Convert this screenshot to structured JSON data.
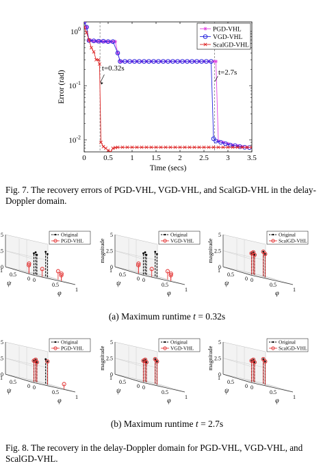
{
  "fig7": {
    "caption": "Fig. 7.  The recovery errors of PGD-VHL, VGD-VHL, and ScalGD-VHL in the delay-Doppler domain.",
    "chart_data": {
      "type": "line",
      "xlabel": "Time (secs)",
      "ylabel": "Error (rad)",
      "xlim": [
        0,
        3.5
      ],
      "xticks": [
        "0",
        "0.5",
        "1",
        "1.5",
        "2",
        "2.5",
        "3",
        "3.5"
      ],
      "yscale": "log",
      "ylim": [
        0.006,
        1.5
      ],
      "yticks": [
        {
          "v": 1,
          "base": "10",
          "exp": "0"
        },
        {
          "v": 0.1,
          "base": "10",
          "exp": "-1"
        },
        {
          "v": 0.01,
          "base": "10",
          "exp": "-2"
        }
      ],
      "legend": "top-right",
      "grid": false,
      "annotations": [
        {
          "text": "t=0.32s",
          "x": 0.32,
          "y": 0.025
        },
        {
          "text": "t=2.7s",
          "x": 2.7,
          "y": 0.1
        }
      ],
      "series": [
        {
          "name": "PGD-VHL",
          "color": "#e040e0",
          "marker": "star",
          "x": [
            0.0,
            0.05,
            0.1,
            0.15,
            0.2,
            0.25,
            0.3,
            0.35,
            0.4,
            0.45,
            0.5,
            0.55,
            0.6,
            0.65,
            0.7,
            0.75,
            0.8,
            0.9,
            1.0,
            1.1,
            1.2,
            1.3,
            1.4,
            1.5,
            1.6,
            1.7,
            1.8,
            1.9,
            2.0,
            2.1,
            2.2,
            2.3,
            2.4,
            2.5,
            2.6,
            2.7,
            2.75,
            2.8,
            2.9,
            3.0,
            3.1,
            3.2,
            3.3,
            3.4
          ],
          "y": [
            1.5,
            1.2,
            0.68,
            0.68,
            0.66,
            0.66,
            0.66,
            0.66,
            0.65,
            0.65,
            0.65,
            0.65,
            0.65,
            0.65,
            0.4,
            0.28,
            0.28,
            0.28,
            0.28,
            0.28,
            0.28,
            0.28,
            0.28,
            0.28,
            0.28,
            0.28,
            0.28,
            0.28,
            0.28,
            0.28,
            0.28,
            0.28,
            0.28,
            0.28,
            0.28,
            0.28,
            0.28,
            0.0095,
            0.009,
            0.0085,
            0.008,
            0.0078,
            0.0075,
            0.0073
          ]
        },
        {
          "name": "VGD-VHL",
          "color": "#2222dd",
          "marker": "circle",
          "x": [
            0.0,
            0.05,
            0.1,
            0.2,
            0.3,
            0.4,
            0.5,
            0.6,
            0.7,
            0.75,
            0.85,
            0.95,
            1.05,
            1.15,
            1.25,
            1.35,
            1.45,
            1.55,
            1.65,
            1.75,
            1.85,
            1.95,
            2.05,
            2.15,
            2.25,
            2.35,
            2.45,
            2.55,
            2.65,
            2.7,
            2.75,
            2.85,
            2.95,
            3.05,
            3.15,
            3.25,
            3.35,
            3.45
          ],
          "y": [
            1.5,
            1.2,
            0.68,
            0.67,
            0.66,
            0.66,
            0.65,
            0.65,
            0.4,
            0.28,
            0.28,
            0.28,
            0.28,
            0.28,
            0.28,
            0.28,
            0.28,
            0.28,
            0.28,
            0.28,
            0.28,
            0.28,
            0.28,
            0.28,
            0.28,
            0.28,
            0.28,
            0.28,
            0.28,
            0.0105,
            0.0095,
            0.009,
            0.0085,
            0.008,
            0.0078,
            0.0075,
            0.0073,
            0.0072
          ]
        },
        {
          "name": "ScalGD-VHL",
          "color": "#dd2222",
          "marker": "x",
          "x": [
            0.0,
            0.05,
            0.1,
            0.15,
            0.2,
            0.25,
            0.3,
            0.32,
            0.35,
            0.4,
            0.45,
            0.5,
            0.55,
            0.6,
            0.65,
            0.7,
            0.8,
            0.9,
            1.0,
            1.1,
            1.2,
            1.3,
            1.4,
            1.5,
            1.6,
            1.7,
            1.8,
            1.9,
            2.0,
            2.1,
            2.2,
            2.3,
            2.4,
            2.5,
            2.6,
            2.7,
            2.8,
            2.9,
            3.0,
            3.1,
            3.2,
            3.3,
            3.4,
            3.5
          ],
          "y": [
            1.2,
            0.95,
            0.7,
            0.5,
            0.42,
            0.3,
            0.3,
            0.25,
            0.009,
            0.0075,
            0.007,
            0.0064,
            0.006,
            0.007,
            0.0072,
            0.0073,
            0.0073,
            0.0073,
            0.0073,
            0.0073,
            0.0073,
            0.0073,
            0.0073,
            0.0073,
            0.0073,
            0.0073,
            0.0073,
            0.0073,
            0.0073,
            0.0073,
            0.0073,
            0.0073,
            0.0073,
            0.0073,
            0.0073,
            0.0073,
            0.0073,
            0.0073,
            0.0073,
            0.0073,
            0.0073,
            0.0073,
            0.0073,
            0.0073
          ]
        }
      ]
    }
  },
  "fig8": {
    "caption": "Fig. 8.  The recovery in the delay-Doppler domain for PGD-VHL, VGD-VHL, and ScalGD-VHL.",
    "subcaption_a_prefix": "(a) Maximum runtime ",
    "subcaption_a_var": "t",
    "subcaption_a_value": " = 0.32s",
    "subcaption_b_prefix": "(b) Maximum runtime ",
    "subcaption_b_var": "t",
    "subcaption_b_value": " = 2.7s",
    "axis_labels": {
      "z": "magnitude",
      "psi": "ψ",
      "phi": "φ"
    },
    "z_ticks": [
      "0",
      "2.5",
      "5"
    ],
    "psi_ticks": [
      "1",
      "0.5",
      "0"
    ],
    "phi_ticks": [
      "0",
      "0.5",
      "1"
    ],
    "legend_original": "Original",
    "original_points": [
      {
        "phi": 0.25,
        "psi": 0.35,
        "z": 3.3
      },
      {
        "phi": 0.45,
        "psi": 0.55,
        "z": 3.1
      },
      {
        "phi": 0.55,
        "psi": 0.75,
        "z": 3.4
      },
      {
        "phi": 0.7,
        "psi": 0.55,
        "z": 3.6
      },
      {
        "phi": 0.85,
        "psi": 0.85,
        "z": 3.8
      }
    ],
    "chart_data": [
      {
        "type": "scatter",
        "subplot": "a-1",
        "legend": "PGD-VHL",
        "recovered_points": [
          {
            "phi": 0.1,
            "psi": 0.3,
            "z": 1.3
          },
          {
            "phi": 0.2,
            "psi": 0.45,
            "z": 1.5
          },
          {
            "phi": 0.35,
            "psi": 0.2,
            "z": 1.2
          },
          {
            "phi": 0.8,
            "psi": 0.2,
            "z": 0.9
          },
          {
            "phi": 0.9,
            "psi": 0.35,
            "z": 1.1
          },
          {
            "phi": 0.95,
            "psi": 0.55,
            "z": 1.3
          }
        ]
      },
      {
        "type": "scatter",
        "subplot": "a-2",
        "legend": "VGD-VHL",
        "recovered_points": [
          {
            "phi": 0.1,
            "psi": 0.3,
            "z": 1.3
          },
          {
            "phi": 0.2,
            "psi": 0.45,
            "z": 1.5
          },
          {
            "phi": 0.35,
            "psi": 0.2,
            "z": 1.2
          },
          {
            "phi": 0.8,
            "psi": 0.2,
            "z": 0.9
          },
          {
            "phi": 0.9,
            "psi": 0.35,
            "z": 1.1
          },
          {
            "phi": 0.95,
            "psi": 0.55,
            "z": 1.3
          }
        ]
      },
      {
        "type": "scatter",
        "subplot": "a-3",
        "legend": "ScalGD-VHL",
        "recovered_points": [
          {
            "phi": 0.25,
            "psi": 0.35,
            "z": 3.3
          },
          {
            "phi": 0.45,
            "psi": 0.55,
            "z": 3.1
          },
          {
            "phi": 0.55,
            "psi": 0.75,
            "z": 3.4
          },
          {
            "phi": 0.7,
            "psi": 0.55,
            "z": 3.6
          },
          {
            "phi": 0.85,
            "psi": 0.85,
            "z": 3.8
          }
        ]
      },
      {
        "type": "scatter",
        "subplot": "b-1",
        "legend": "PGD-VHL",
        "recovered_points": [
          {
            "phi": 0.25,
            "psi": 0.35,
            "z": 3.3
          },
          {
            "phi": 0.45,
            "psi": 0.55,
            "z": 3.1
          },
          {
            "phi": 0.55,
            "psi": 0.75,
            "z": 3.4
          },
          {
            "phi": 0.7,
            "psi": 0.55,
            "z": 3.6
          },
          {
            "phi": 0.8,
            "psi": 0.1,
            "z": 0.8
          }
        ]
      },
      {
        "type": "scatter",
        "subplot": "b-2",
        "legend": "VGD-VHL",
        "recovered_points": [
          {
            "phi": 0.25,
            "psi": 0.35,
            "z": 3.3
          },
          {
            "phi": 0.45,
            "psi": 0.55,
            "z": 3.1
          },
          {
            "phi": 0.55,
            "psi": 0.75,
            "z": 3.4
          },
          {
            "phi": 0.7,
            "psi": 0.55,
            "z": 3.6
          },
          {
            "phi": 0.85,
            "psi": 0.85,
            "z": 3.8
          }
        ]
      },
      {
        "type": "scatter",
        "subplot": "b-3",
        "legend": "ScalGD-VHL",
        "recovered_points": [
          {
            "phi": 0.25,
            "psi": 0.35,
            "z": 3.3
          },
          {
            "phi": 0.45,
            "psi": 0.55,
            "z": 3.1
          },
          {
            "phi": 0.55,
            "psi": 0.75,
            "z": 3.4
          },
          {
            "phi": 0.7,
            "psi": 0.55,
            "z": 3.6
          },
          {
            "phi": 0.85,
            "psi": 0.85,
            "z": 3.8
          }
        ]
      }
    ]
  }
}
